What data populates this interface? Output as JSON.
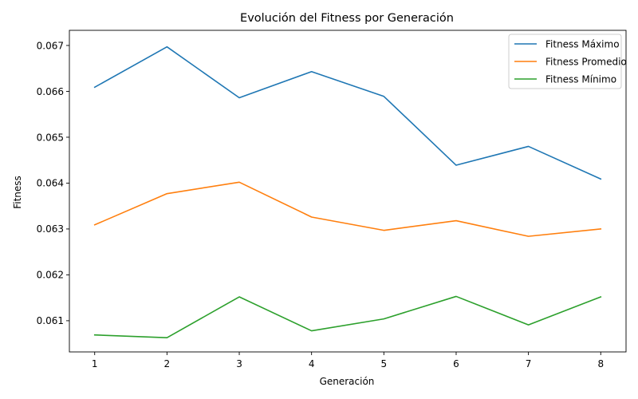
{
  "chart_data": {
    "type": "line",
    "title": "Evolución del Fitness por Generación",
    "xlabel": "Generación",
    "ylabel": "Fitness",
    "x": [
      1,
      2,
      3,
      4,
      5,
      6,
      7,
      8
    ],
    "xticks": [
      "1",
      "2",
      "3",
      "4",
      "5",
      "6",
      "7",
      "8"
    ],
    "yticks": [
      "0.061",
      "0.062",
      "0.063",
      "0.064",
      "0.065",
      "0.066",
      "0.067"
    ],
    "ytick_values": [
      0.061,
      0.062,
      0.063,
      0.064,
      0.065,
      0.066,
      0.067
    ],
    "xlim": [
      0.65,
      8.35
    ],
    "ylim": [
      0.06032,
      0.06733
    ],
    "grid": false,
    "legend_position": "top-right",
    "series": [
      {
        "name": "Fitness Máximo",
        "color": "#1f77b4",
        "values": [
          0.06609,
          0.06697,
          0.06586,
          0.06643,
          0.06589,
          0.06439,
          0.0648,
          0.06409
        ]
      },
      {
        "name": "Fitness Promedio",
        "color": "#ff7f0e",
        "values": [
          0.06309,
          0.06377,
          0.06402,
          0.06326,
          0.06297,
          0.06318,
          0.06284,
          0.063
        ]
      },
      {
        "name": "Fitness Mínimo",
        "color": "#2ca02c",
        "values": [
          0.06069,
          0.06063,
          0.06152,
          0.06078,
          0.06104,
          0.06153,
          0.06091,
          0.06152
        ]
      }
    ]
  }
}
